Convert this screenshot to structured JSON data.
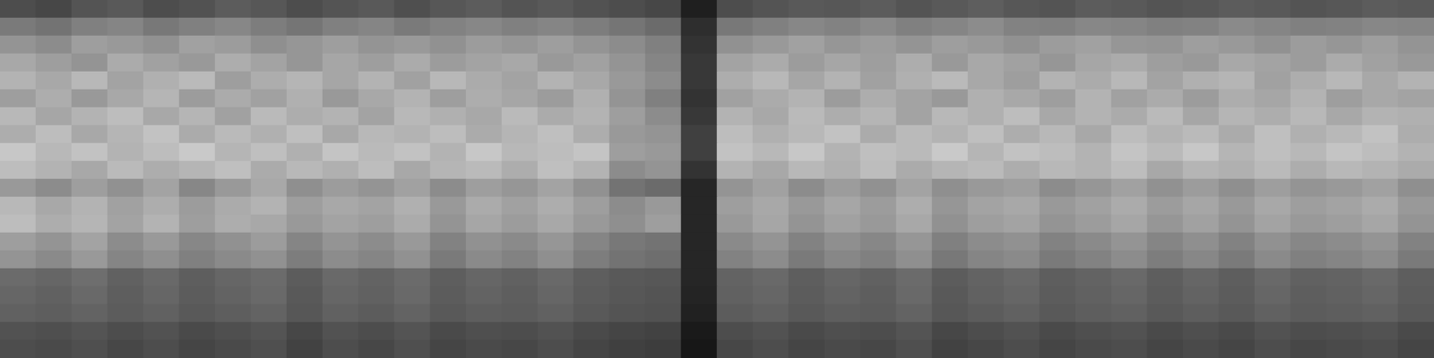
{
  "chart_data": {
    "type": "heatmap",
    "tick_labels": false,
    "grid": false,
    "color_range": [
      0,
      1
    ],
    "cells": [
      [
        0.3,
        0.28,
        0.33,
        0.35,
        0.3,
        0.32,
        0.36,
        0.34,
        0.3,
        0.33,
        0.35,
        0.31,
        0.34,
        0.36,
        0.33,
        0.35,
        0.32,
        0.3,
        0.28,
        0.12,
        0.3,
        0.33,
        0.35,
        0.34,
        0.36,
        0.33,
        0.35,
        0.37,
        0.34,
        0.33,
        0.36,
        0.35,
        0.33,
        0.34,
        0.36,
        0.35,
        0.33,
        0.34,
        0.36,
        0.35
      ],
      [
        0.48,
        0.45,
        0.5,
        0.52,
        0.47,
        0.5,
        0.53,
        0.49,
        0.46,
        0.5,
        0.52,
        0.48,
        0.51,
        0.53,
        0.5,
        0.52,
        0.49,
        0.46,
        0.42,
        0.18,
        0.47,
        0.5,
        0.53,
        0.51,
        0.54,
        0.5,
        0.52,
        0.55,
        0.51,
        0.5,
        0.53,
        0.52,
        0.5,
        0.51,
        0.54,
        0.52,
        0.5,
        0.51,
        0.53,
        0.52
      ],
      [
        0.58,
        0.55,
        0.62,
        0.6,
        0.57,
        0.63,
        0.61,
        0.56,
        0.59,
        0.62,
        0.58,
        0.6,
        0.57,
        0.61,
        0.59,
        0.62,
        0.58,
        0.55,
        0.5,
        0.2,
        0.57,
        0.6,
        0.63,
        0.59,
        0.61,
        0.58,
        0.62,
        0.6,
        0.57,
        0.61,
        0.63,
        0.59,
        0.58,
        0.62,
        0.6,
        0.57,
        0.61,
        0.59,
        0.62,
        0.58
      ],
      [
        0.66,
        0.62,
        0.58,
        0.67,
        0.63,
        0.6,
        0.68,
        0.64,
        0.59,
        0.65,
        0.62,
        0.67,
        0.61,
        0.64,
        0.66,
        0.6,
        0.63,
        0.58,
        0.52,
        0.22,
        0.64,
        0.67,
        0.61,
        0.65,
        0.62,
        0.68,
        0.6,
        0.66,
        0.63,
        0.59,
        0.65,
        0.67,
        0.62,
        0.6,
        0.66,
        0.64,
        0.61,
        0.67,
        0.63,
        0.6
      ],
      [
        0.7,
        0.66,
        0.72,
        0.64,
        0.69,
        0.73,
        0.62,
        0.68,
        0.71,
        0.65,
        0.7,
        0.63,
        0.72,
        0.67,
        0.64,
        0.7,
        0.66,
        0.6,
        0.55,
        0.22,
        0.68,
        0.72,
        0.65,
        0.7,
        0.63,
        0.69,
        0.73,
        0.66,
        0.62,
        0.7,
        0.67,
        0.72,
        0.64,
        0.69,
        0.71,
        0.63,
        0.68,
        0.72,
        0.66,
        0.7
      ],
      [
        0.62,
        0.68,
        0.6,
        0.66,
        0.71,
        0.61,
        0.67,
        0.63,
        0.69,
        0.6,
        0.66,
        0.7,
        0.62,
        0.68,
        0.65,
        0.61,
        0.69,
        0.58,
        0.5,
        0.2,
        0.63,
        0.67,
        0.7,
        0.61,
        0.68,
        0.64,
        0.6,
        0.69,
        0.66,
        0.62,
        0.7,
        0.63,
        0.67,
        0.61,
        0.68,
        0.65,
        0.7,
        0.62,
        0.66,
        0.64
      ],
      [
        0.72,
        0.65,
        0.7,
        0.74,
        0.66,
        0.71,
        0.63,
        0.73,
        0.68,
        0.7,
        0.64,
        0.72,
        0.69,
        0.66,
        0.73,
        0.67,
        0.7,
        0.62,
        0.55,
        0.22,
        0.7,
        0.66,
        0.73,
        0.68,
        0.71,
        0.64,
        0.72,
        0.69,
        0.74,
        0.66,
        0.7,
        0.67,
        0.73,
        0.65,
        0.71,
        0.68,
        0.72,
        0.66,
        0.7,
        0.69
      ],
      [
        0.68,
        0.74,
        0.66,
        0.71,
        0.76,
        0.67,
        0.73,
        0.69,
        0.75,
        0.66,
        0.72,
        0.7,
        0.74,
        0.67,
        0.71,
        0.75,
        0.68,
        0.6,
        0.58,
        0.25,
        0.74,
        0.69,
        0.72,
        0.76,
        0.67,
        0.73,
        0.7,
        0.75,
        0.68,
        0.72,
        0.66,
        0.74,
        0.7,
        0.73,
        0.67,
        0.75,
        0.69,
        0.72,
        0.76,
        0.68
      ],
      [
        0.78,
        0.72,
        0.76,
        0.7,
        0.74,
        0.79,
        0.71,
        0.75,
        0.69,
        0.77,
        0.73,
        0.76,
        0.7,
        0.78,
        0.72,
        0.74,
        0.77,
        0.62,
        0.6,
        0.25,
        0.76,
        0.72,
        0.78,
        0.7,
        0.75,
        0.73,
        0.79,
        0.71,
        0.76,
        0.74,
        0.7,
        0.77,
        0.73,
        0.78,
        0.71,
        0.75,
        0.72,
        0.77,
        0.74,
        0.7
      ],
      [
        0.74,
        0.7,
        0.66,
        0.73,
        0.68,
        0.71,
        0.75,
        0.67,
        0.72,
        0.69,
        0.74,
        0.66,
        0.71,
        0.73,
        0.68,
        0.75,
        0.7,
        0.55,
        0.58,
        0.2,
        0.7,
        0.66,
        0.72,
        0.69,
        0.74,
        0.67,
        0.71,
        0.73,
        0.68,
        0.72,
        0.7,
        0.74,
        0.66,
        0.71,
        0.69,
        0.73,
        0.68,
        0.72,
        0.7,
        0.67
      ],
      [
        0.6,
        0.55,
        0.62,
        0.57,
        0.64,
        0.53,
        0.6,
        0.66,
        0.56,
        0.61,
        0.58,
        0.63,
        0.55,
        0.62,
        0.59,
        0.64,
        0.57,
        0.45,
        0.42,
        0.15,
        0.58,
        0.63,
        0.55,
        0.61,
        0.57,
        0.64,
        0.56,
        0.6,
        0.62,
        0.55,
        0.59,
        0.63,
        0.57,
        0.61,
        0.56,
        0.62,
        0.58,
        0.6,
        0.63,
        0.56
      ],
      [
        0.72,
        0.66,
        0.7,
        0.63,
        0.68,
        0.61,
        0.67,
        0.7,
        0.62,
        0.66,
        0.64,
        0.69,
        0.6,
        0.67,
        0.63,
        0.68,
        0.62,
        0.55,
        0.6,
        0.15,
        0.62,
        0.66,
        0.6,
        0.65,
        0.61,
        0.68,
        0.59,
        0.64,
        0.66,
        0.6,
        0.63,
        0.67,
        0.61,
        0.65,
        0.6,
        0.66,
        0.62,
        0.64,
        0.67,
        0.6
      ],
      [
        0.74,
        0.68,
        0.71,
        0.64,
        0.7,
        0.62,
        0.68,
        0.66,
        0.6,
        0.64,
        0.62,
        0.67,
        0.58,
        0.65,
        0.61,
        0.66,
        0.6,
        0.56,
        0.62,
        0.15,
        0.6,
        0.65,
        0.58,
        0.63,
        0.6,
        0.66,
        0.57,
        0.62,
        0.64,
        0.58,
        0.61,
        0.65,
        0.59,
        0.63,
        0.58,
        0.64,
        0.6,
        0.62,
        0.65,
        0.58
      ],
      [
        0.62,
        0.58,
        0.64,
        0.55,
        0.6,
        0.53,
        0.57,
        0.61,
        0.52,
        0.58,
        0.55,
        0.6,
        0.51,
        0.57,
        0.54,
        0.59,
        0.52,
        0.47,
        0.45,
        0.15,
        0.54,
        0.58,
        0.51,
        0.56,
        0.53,
        0.59,
        0.5,
        0.55,
        0.57,
        0.51,
        0.54,
        0.58,
        0.52,
        0.56,
        0.51,
        0.57,
        0.53,
        0.55,
        0.58,
        0.51
      ],
      [
        0.58,
        0.54,
        0.6,
        0.52,
        0.56,
        0.5,
        0.54,
        0.57,
        0.49,
        0.55,
        0.52,
        0.57,
        0.48,
        0.54,
        0.51,
        0.56,
        0.49,
        0.45,
        0.43,
        0.15,
        0.51,
        0.55,
        0.48,
        0.53,
        0.5,
        0.56,
        0.47,
        0.52,
        0.54,
        0.48,
        0.51,
        0.55,
        0.49,
        0.53,
        0.48,
        0.54,
        0.5,
        0.52,
        0.55,
        0.48
      ],
      [
        0.42,
        0.4,
        0.43,
        0.38,
        0.41,
        0.37,
        0.4,
        0.42,
        0.36,
        0.41,
        0.39,
        0.42,
        0.37,
        0.4,
        0.38,
        0.41,
        0.37,
        0.35,
        0.34,
        0.15,
        0.39,
        0.41,
        0.37,
        0.4,
        0.38,
        0.42,
        0.36,
        0.39,
        0.41,
        0.37,
        0.39,
        0.41,
        0.37,
        0.4,
        0.37,
        0.41,
        0.38,
        0.39,
        0.41,
        0.37
      ],
      [
        0.4,
        0.38,
        0.41,
        0.37,
        0.4,
        0.36,
        0.39,
        0.41,
        0.35,
        0.4,
        0.38,
        0.41,
        0.36,
        0.39,
        0.37,
        0.4,
        0.36,
        0.34,
        0.33,
        0.14,
        0.38,
        0.4,
        0.36,
        0.39,
        0.37,
        0.41,
        0.35,
        0.38,
        0.4,
        0.36,
        0.38,
        0.4,
        0.36,
        0.39,
        0.36,
        0.4,
        0.37,
        0.38,
        0.4,
        0.36
      ],
      [
        0.38,
        0.37,
        0.39,
        0.36,
        0.38,
        0.35,
        0.37,
        0.39,
        0.34,
        0.38,
        0.36,
        0.39,
        0.35,
        0.37,
        0.36,
        0.38,
        0.35,
        0.33,
        0.32,
        0.13,
        0.36,
        0.38,
        0.35,
        0.37,
        0.36,
        0.39,
        0.34,
        0.36,
        0.38,
        0.35,
        0.37,
        0.38,
        0.35,
        0.37,
        0.35,
        0.38,
        0.36,
        0.37,
        0.38,
        0.35
      ],
      [
        0.32,
        0.31,
        0.33,
        0.3,
        0.32,
        0.29,
        0.31,
        0.33,
        0.28,
        0.32,
        0.3,
        0.33,
        0.29,
        0.31,
        0.3,
        0.32,
        0.29,
        0.27,
        0.26,
        0.1,
        0.3,
        0.32,
        0.29,
        0.31,
        0.3,
        0.33,
        0.28,
        0.3,
        0.32,
        0.29,
        0.31,
        0.32,
        0.29,
        0.31,
        0.29,
        0.32,
        0.3,
        0.31,
        0.32,
        0.29
      ],
      [
        0.3,
        0.29,
        0.31,
        0.28,
        0.3,
        0.27,
        0.29,
        0.31,
        0.26,
        0.3,
        0.28,
        0.31,
        0.27,
        0.29,
        0.28,
        0.3,
        0.27,
        0.25,
        0.24,
        0.09,
        0.28,
        0.3,
        0.27,
        0.29,
        0.28,
        0.31,
        0.26,
        0.28,
        0.3,
        0.27,
        0.29,
        0.3,
        0.27,
        0.29,
        0.27,
        0.3,
        0.28,
        0.29,
        0.3,
        0.27
      ]
    ]
  }
}
